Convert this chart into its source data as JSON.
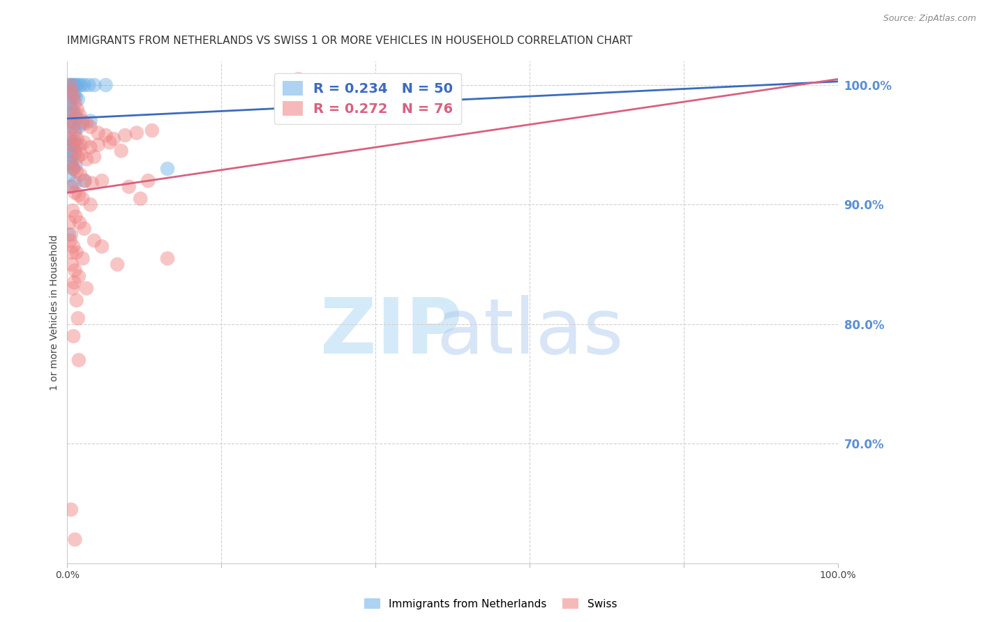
{
  "title": "IMMIGRANTS FROM NETHERLANDS VS SWISS 1 OR MORE VEHICLES IN HOUSEHOLD CORRELATION CHART",
  "source": "Source: ZipAtlas.com",
  "ylabel": "1 or more Vehicles in Household",
  "ytick_color": "#5b8fd4",
  "legend_blue_r": "R = 0.234",
  "legend_blue_n": "N = 50",
  "legend_pink_r": "R = 0.272",
  "legend_pink_n": "N = 76",
  "blue_color": "#6aaee8",
  "pink_color": "#f08080",
  "blue_line_color": "#3a6bbf",
  "pink_line_color": "#d96080",
  "blue_line": [
    0,
    100,
    97.2,
    100.3
  ],
  "pink_line": [
    0,
    100,
    91.0,
    100.5
  ],
  "xmin": 0,
  "xmax": 100,
  "ymin": 60,
  "ymax": 102,
  "yticks": [
    100,
    90,
    80,
    70
  ],
  "ytick_labels": [
    "100.0%",
    "90.0%",
    "80.0%",
    "70.0%"
  ],
  "xtick_positions": [
    0,
    20,
    40,
    60,
    80,
    100
  ],
  "xtick_labels": [
    "0.0%",
    "",
    "",
    "",
    "",
    "100.0%"
  ],
  "background_color": "#ffffff",
  "grid_color": "#d0d0d0",
  "blue_dots": [
    [
      0.15,
      100.0
    ],
    [
      0.4,
      100.0
    ],
    [
      0.6,
      100.0
    ],
    [
      0.8,
      100.0
    ],
    [
      1.0,
      100.0
    ],
    [
      1.2,
      100.0
    ],
    [
      1.5,
      100.0
    ],
    [
      1.8,
      100.0
    ],
    [
      2.2,
      100.0
    ],
    [
      2.8,
      100.0
    ],
    [
      3.5,
      100.0
    ],
    [
      5.0,
      100.0
    ],
    [
      0.3,
      99.5
    ],
    [
      0.5,
      99.3
    ],
    [
      0.7,
      99.0
    ],
    [
      0.9,
      99.2
    ],
    [
      1.1,
      99.0
    ],
    [
      1.4,
      98.8
    ],
    [
      0.2,
      98.5
    ],
    [
      0.4,
      98.2
    ],
    [
      0.6,
      98.0
    ],
    [
      0.8,
      97.8
    ],
    [
      1.0,
      97.5
    ],
    [
      1.3,
      97.2
    ],
    [
      0.3,
      97.0
    ],
    [
      0.5,
      96.8
    ],
    [
      0.7,
      96.5
    ],
    [
      1.0,
      96.2
    ],
    [
      1.5,
      96.5
    ],
    [
      2.0,
      96.8
    ],
    [
      3.0,
      97.0
    ],
    [
      0.2,
      95.5
    ],
    [
      0.4,
      95.2
    ],
    [
      0.6,
      95.0
    ],
    [
      0.9,
      95.3
    ],
    [
      1.2,
      95.0
    ],
    [
      0.3,
      94.5
    ],
    [
      0.5,
      94.2
    ],
    [
      0.7,
      94.0
    ],
    [
      1.0,
      94.3
    ],
    [
      0.4,
      93.5
    ],
    [
      0.6,
      93.2
    ],
    [
      0.8,
      93.0
    ],
    [
      1.1,
      93.3
    ],
    [
      0.3,
      92.5
    ],
    [
      2.2,
      92.0
    ],
    [
      0.2,
      87.5
    ],
    [
      13.0,
      93.0
    ],
    [
      0.5,
      91.5
    ],
    [
      1.0,
      91.8
    ]
  ],
  "pink_dots": [
    [
      0.4,
      100.0
    ],
    [
      0.6,
      99.5
    ],
    [
      0.8,
      99.0
    ],
    [
      1.0,
      98.5
    ],
    [
      1.3,
      98.0
    ],
    [
      1.6,
      97.5
    ],
    [
      2.0,
      97.0
    ],
    [
      2.5,
      96.8
    ],
    [
      3.0,
      96.5
    ],
    [
      4.0,
      96.0
    ],
    [
      5.0,
      95.8
    ],
    [
      6.0,
      95.5
    ],
    [
      7.5,
      95.8
    ],
    [
      9.0,
      96.0
    ],
    [
      11.0,
      96.2
    ],
    [
      0.3,
      97.5
    ],
    [
      0.5,
      97.0
    ],
    [
      0.7,
      96.5
    ],
    [
      1.0,
      96.0
    ],
    [
      1.3,
      95.5
    ],
    [
      1.7,
      95.0
    ],
    [
      2.2,
      95.2
    ],
    [
      3.0,
      94.8
    ],
    [
      4.0,
      95.0
    ],
    [
      5.5,
      95.2
    ],
    [
      7.0,
      94.5
    ],
    [
      0.4,
      95.5
    ],
    [
      0.7,
      95.0
    ],
    [
      1.0,
      94.5
    ],
    [
      1.4,
      94.0
    ],
    [
      1.8,
      94.2
    ],
    [
      2.5,
      93.8
    ],
    [
      3.5,
      94.0
    ],
    [
      0.5,
      93.5
    ],
    [
      0.8,
      93.0
    ],
    [
      1.2,
      92.8
    ],
    [
      1.7,
      92.5
    ],
    [
      2.3,
      92.0
    ],
    [
      3.2,
      91.8
    ],
    [
      4.5,
      92.0
    ],
    [
      0.6,
      91.5
    ],
    [
      1.0,
      91.0
    ],
    [
      1.5,
      90.8
    ],
    [
      2.0,
      90.5
    ],
    [
      3.0,
      90.0
    ],
    [
      0.7,
      89.5
    ],
    [
      1.1,
      89.0
    ],
    [
      1.6,
      88.5
    ],
    [
      2.2,
      88.0
    ],
    [
      0.5,
      87.5
    ],
    [
      0.8,
      86.5
    ],
    [
      1.2,
      86.0
    ],
    [
      2.0,
      85.5
    ],
    [
      0.6,
      85.0
    ],
    [
      1.0,
      84.5
    ],
    [
      1.5,
      84.0
    ],
    [
      0.7,
      83.0
    ],
    [
      1.2,
      82.0
    ],
    [
      0.8,
      79.0
    ],
    [
      1.5,
      77.0
    ],
    [
      0.4,
      87.0
    ],
    [
      0.9,
      83.5
    ],
    [
      1.4,
      80.5
    ],
    [
      30.0,
      100.5
    ],
    [
      0.3,
      88.5
    ],
    [
      0.6,
      86.0
    ],
    [
      3.5,
      87.0
    ],
    [
      8.0,
      91.5
    ],
    [
      9.5,
      90.5
    ],
    [
      10.5,
      92.0
    ],
    [
      0.5,
      64.5
    ],
    [
      1.0,
      62.0
    ],
    [
      2.5,
      83.0
    ],
    [
      4.5,
      86.5
    ],
    [
      6.5,
      85.0
    ],
    [
      13.0,
      85.5
    ]
  ]
}
